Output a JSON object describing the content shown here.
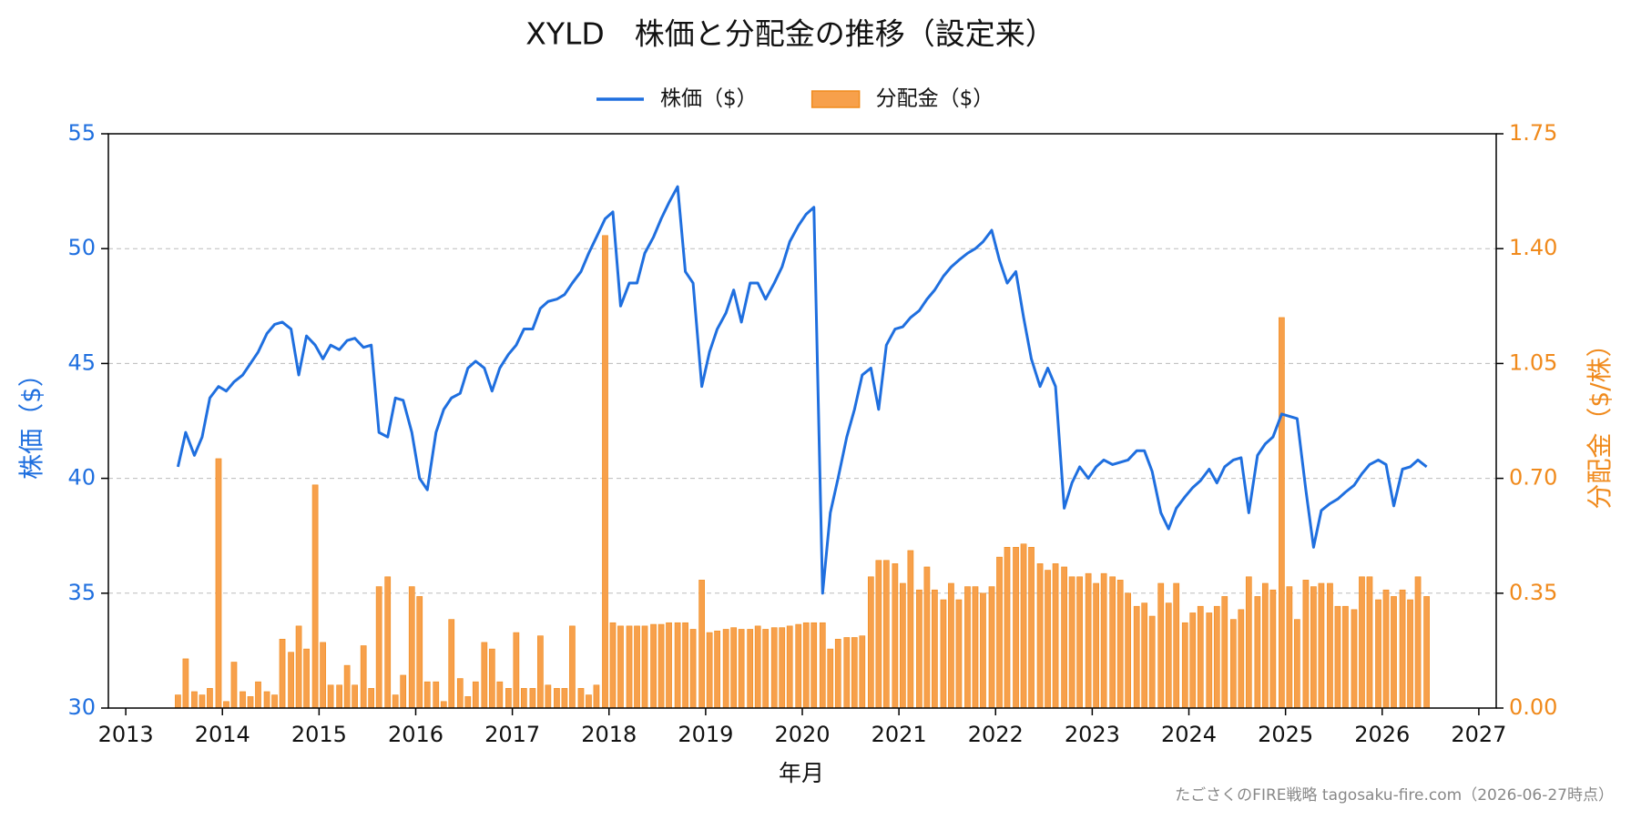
{
  "chart_data": {
    "type": "line-bar",
    "title": "XYLD　株価と分配金の推移（設定来）",
    "xlabel": "年月",
    "ylabel": "株価（$）",
    "y2label": "分配金（$/株）",
    "footer": "たごさくのFIRE戦略 tagosaku-fire.com（2026-06-27時点）",
    "legend": "top",
    "grid": true,
    "xlim": [
      2012.82,
      2027.18
    ],
    "xticks": [
      2013,
      2014,
      2015,
      2016,
      2017,
      2018,
      2019,
      2020,
      2021,
      2022,
      2023,
      2024,
      2025,
      2026,
      2027
    ],
    "ylim": [
      30,
      55
    ],
    "yticks": [
      30,
      35,
      40,
      45,
      50,
      55
    ],
    "y2lim": [
      0,
      1.75
    ],
    "y2ticks": [
      {
        "value": 0,
        "label": "0.00"
      },
      {
        "value": 0.35,
        "label": "0.35"
      },
      {
        "value": 0.7,
        "label": "0.70"
      },
      {
        "value": 1.05,
        "label": "1.05"
      },
      {
        "value": 1.4,
        "label": "1.40"
      },
      {
        "value": 1.75,
        "label": "1.75"
      }
    ],
    "y_color": "#1f6fdf",
    "y2_color": "#f08a1c",
    "x": [
      2013.54,
      2013.62,
      2013.71,
      2013.79,
      2013.87,
      2013.96,
      2014.04,
      2014.12,
      2014.21,
      2014.29,
      2014.37,
      2014.46,
      2014.54,
      2014.62,
      2014.71,
      2014.79,
      2014.87,
      2014.96,
      2015.04,
      2015.12,
      2015.21,
      2015.29,
      2015.37,
      2015.46,
      2015.54,
      2015.62,
      2015.71,
      2015.79,
      2015.87,
      2015.96,
      2016.04,
      2016.12,
      2016.21,
      2016.29,
      2016.37,
      2016.46,
      2016.54,
      2016.62,
      2016.71,
      2016.79,
      2016.87,
      2016.96,
      2017.04,
      2017.12,
      2017.21,
      2017.29,
      2017.37,
      2017.46,
      2017.54,
      2017.62,
      2017.71,
      2017.79,
      2017.87,
      2017.96,
      2018.04,
      2018.12,
      2018.21,
      2018.29,
      2018.37,
      2018.46,
      2018.54,
      2018.62,
      2018.71,
      2018.79,
      2018.87,
      2018.96,
      2019.04,
      2019.12,
      2019.21,
      2019.29,
      2019.37,
      2019.46,
      2019.54,
      2019.62,
      2019.71,
      2019.79,
      2019.87,
      2019.96,
      2020.04,
      2020.12,
      2020.21,
      2020.29,
      2020.37,
      2020.46,
      2020.54,
      2020.62,
      2020.71,
      2020.79,
      2020.87,
      2020.96,
      2021.04,
      2021.12,
      2021.21,
      2021.29,
      2021.37,
      2021.46,
      2021.54,
      2021.62,
      2021.71,
      2021.79,
      2021.87,
      2021.96,
      2022.04,
      2022.12,
      2022.21,
      2022.29,
      2022.37,
      2022.46,
      2022.54,
      2022.62,
      2022.71,
      2022.79,
      2022.87,
      2022.96,
      2023.04,
      2023.12,
      2023.21,
      2023.29,
      2023.37,
      2023.46,
      2023.54,
      2023.62,
      2023.71,
      2023.79,
      2023.87,
      2023.96,
      2024.04,
      2024.12,
      2024.21,
      2024.29,
      2024.37,
      2024.46,
      2024.54,
      2024.62,
      2024.71,
      2024.79,
      2024.87,
      2024.96,
      2025.04,
      2025.12,
      2025.21,
      2025.29,
      2025.37,
      2025.46,
      2025.54,
      2025.62,
      2025.71,
      2025.79,
      2025.87,
      2025.96,
      2026.04,
      2026.12,
      2026.21,
      2026.29,
      2026.37,
      2026.46
    ],
    "series": [
      {
        "name": "株価（$）",
        "type": "line",
        "color": "#1f6fdf",
        "values": [
          40.5,
          42.0,
          41.0,
          41.8,
          43.5,
          44.0,
          43.8,
          44.2,
          44.5,
          45.0,
          45.5,
          46.3,
          46.7,
          46.8,
          46.5,
          44.5,
          46.2,
          45.8,
          45.2,
          45.8,
          45.6,
          46.0,
          46.1,
          45.7,
          45.8,
          42.0,
          41.8,
          43.5,
          43.4,
          42.0,
          40.0,
          39.5,
          42.0,
          43.0,
          43.5,
          43.7,
          44.8,
          45.1,
          44.8,
          43.8,
          44.8,
          45.4,
          45.8,
          46.5,
          46.5,
          47.4,
          47.7,
          47.8,
          48.0,
          48.5,
          49.0,
          49.8,
          50.5,
          51.3,
          51.6,
          47.5,
          48.5,
          48.5,
          49.8,
          50.5,
          51.3,
          52.0,
          52.7,
          49.0,
          48.5,
          44.0,
          45.5,
          46.5,
          47.2,
          48.2,
          46.8,
          48.5,
          48.5,
          47.8,
          48.5,
          49.2,
          50.3,
          51.0,
          51.5,
          51.8,
          35.0,
          38.5,
          40.0,
          41.8,
          43.0,
          44.5,
          44.8,
          43.0,
          45.8,
          46.5,
          46.6,
          47.0,
          47.3,
          47.8,
          48.2,
          48.8,
          49.2,
          49.5,
          49.8,
          50.0,
          50.3,
          50.8,
          49.5,
          48.5,
          49.0,
          47.0,
          45.2,
          44.0,
          44.8,
          44.0,
          38.7,
          39.8,
          40.5,
          40.0,
          40.5,
          40.8,
          40.6,
          40.7,
          40.8,
          41.2,
          41.2,
          40.3,
          38.5,
          37.8,
          38.7,
          39.2,
          39.6,
          39.9,
          40.4,
          39.8,
          40.5,
          40.8,
          40.9,
          38.5,
          41.0,
          41.5,
          41.8,
          42.8,
          42.7,
          42.6,
          39.5,
          37.0,
          38.6,
          38.9,
          39.1,
          39.4,
          39.7,
          40.2,
          40.6,
          40.8,
          40.6,
          38.8,
          40.4,
          40.5,
          40.8,
          40.5
        ]
      },
      {
        "name": "分配金（$）",
        "type": "bar",
        "axis": "y2",
        "color": "#f7a04b",
        "values": [
          0.04,
          0.15,
          0.05,
          0.04,
          0.06,
          0.76,
          0.02,
          0.14,
          0.05,
          0.035,
          0.08,
          0.05,
          0.04,
          0.21,
          0.17,
          0.25,
          0.18,
          0.68,
          0.2,
          0.07,
          0.07,
          0.13,
          0.07,
          0.19,
          0.06,
          0.37,
          0.4,
          0.04,
          0.1,
          0.37,
          0.34,
          0.08,
          0.08,
          0.02,
          0.27,
          0.09,
          0.035,
          0.08,
          0.2,
          0.18,
          0.08,
          0.06,
          0.23,
          0.06,
          0.06,
          0.22,
          0.07,
          0.06,
          0.06,
          0.25,
          0.06,
          0.04,
          0.07,
          1.44,
          0.26,
          0.25,
          0.25,
          0.25,
          0.25,
          0.255,
          0.255,
          0.26,
          0.26,
          0.26,
          0.24,
          0.39,
          0.23,
          0.235,
          0.24,
          0.245,
          0.24,
          0.24,
          0.25,
          0.24,
          0.245,
          0.245,
          0.25,
          0.255,
          0.26,
          0.26,
          0.26,
          0.18,
          0.21,
          0.215,
          0.215,
          0.22,
          0.4,
          0.45,
          0.45,
          0.44,
          0.38,
          0.48,
          0.36,
          0.43,
          0.36,
          0.33,
          0.38,
          0.33,
          0.37,
          0.37,
          0.35,
          0.37,
          0.46,
          0.49,
          0.49,
          0.5,
          0.49,
          0.44,
          0.42,
          0.44,
          0.43,
          0.4,
          0.4,
          0.41,
          0.38,
          0.41,
          0.4,
          0.39,
          0.35,
          0.31,
          0.32,
          0.28,
          0.38,
          0.32,
          0.38,
          0.26,
          0.29,
          0.31,
          0.29,
          0.31,
          0.34,
          0.27,
          0.3,
          0.4,
          0.34,
          0.38,
          0.36,
          1.19,
          0.37,
          0.27,
          0.39,
          0.37,
          0.38,
          0.38,
          0.31,
          0.31,
          0.3,
          0.4,
          0.4,
          0.33,
          0.36,
          0.34,
          0.36,
          0.33,
          0.4,
          0.34
        ]
      }
    ]
  }
}
